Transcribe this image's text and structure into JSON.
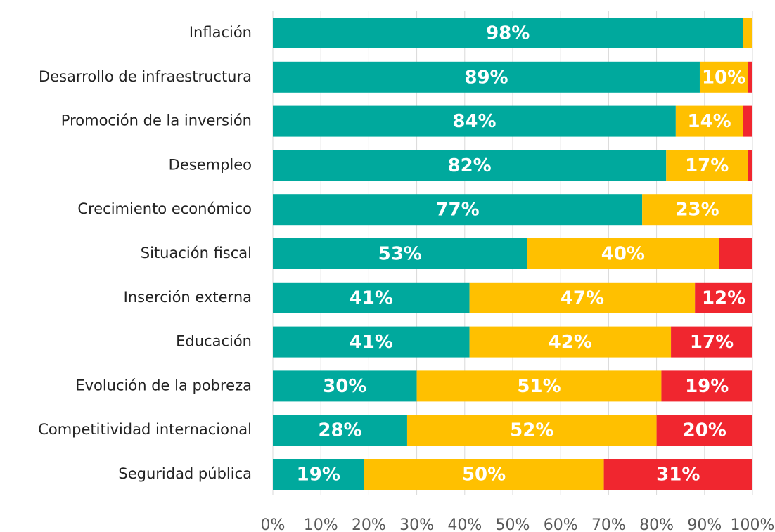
{
  "chart_data": {
    "type": "stacked_bar_horizontal",
    "categories": [
      "Inflación",
      "Desarrollo de infraestructura",
      "Promoción de la inversión",
      "Desempleo",
      "Crecimiento económico",
      "Situación fiscal",
      "Inserción externa",
      "Educación",
      "Evolución de la pobreza",
      "Competitividad internacional",
      "Seguridad pública"
    ],
    "series": [
      {
        "color": "#00A99D",
        "values": [
          98,
          89,
          84,
          82,
          77,
          53,
          41,
          41,
          30,
          28,
          19
        ],
        "value_labels": [
          "98%",
          "89%",
          "84%",
          "82%",
          "77%",
          "53%",
          "41%",
          "41%",
          "30%",
          "28%",
          "19%"
        ]
      },
      {
        "color": "#FFC000",
        "values": [
          2,
          10,
          14,
          17,
          23,
          40,
          47,
          42,
          51,
          52,
          50
        ],
        "value_labels": [
          null,
          "10%",
          "14%",
          "17%",
          "23%",
          "40%",
          "47%",
          "42%",
          "51%",
          "52%",
          "50%"
        ]
      },
      {
        "color": "#F0262F",
        "values": [
          0,
          1,
          2,
          1,
          0,
          7,
          12,
          17,
          19,
          20,
          31
        ],
        "value_labels": [
          null,
          null,
          null,
          null,
          null,
          null,
          "12%",
          "17%",
          "19%",
          "20%",
          "31%"
        ]
      }
    ],
    "xlim": [
      0,
      100
    ],
    "xticks": [
      {
        "value": 0,
        "label": "0%"
      },
      {
        "value": 10,
        "label": "10%"
      },
      {
        "value": 20,
        "label": "20%"
      },
      {
        "value": 30,
        "label": "30%"
      },
      {
        "value": 40,
        "label": "40%"
      },
      {
        "value": 50,
        "label": "50%"
      },
      {
        "value": 60,
        "label": "60%"
      },
      {
        "value": 70,
        "label": "70%"
      },
      {
        "value": 80,
        "label": "80%"
      },
      {
        "value": 90,
        "label": "90%"
      },
      {
        "value": 100,
        "label": "100%"
      }
    ],
    "grid": true
  }
}
